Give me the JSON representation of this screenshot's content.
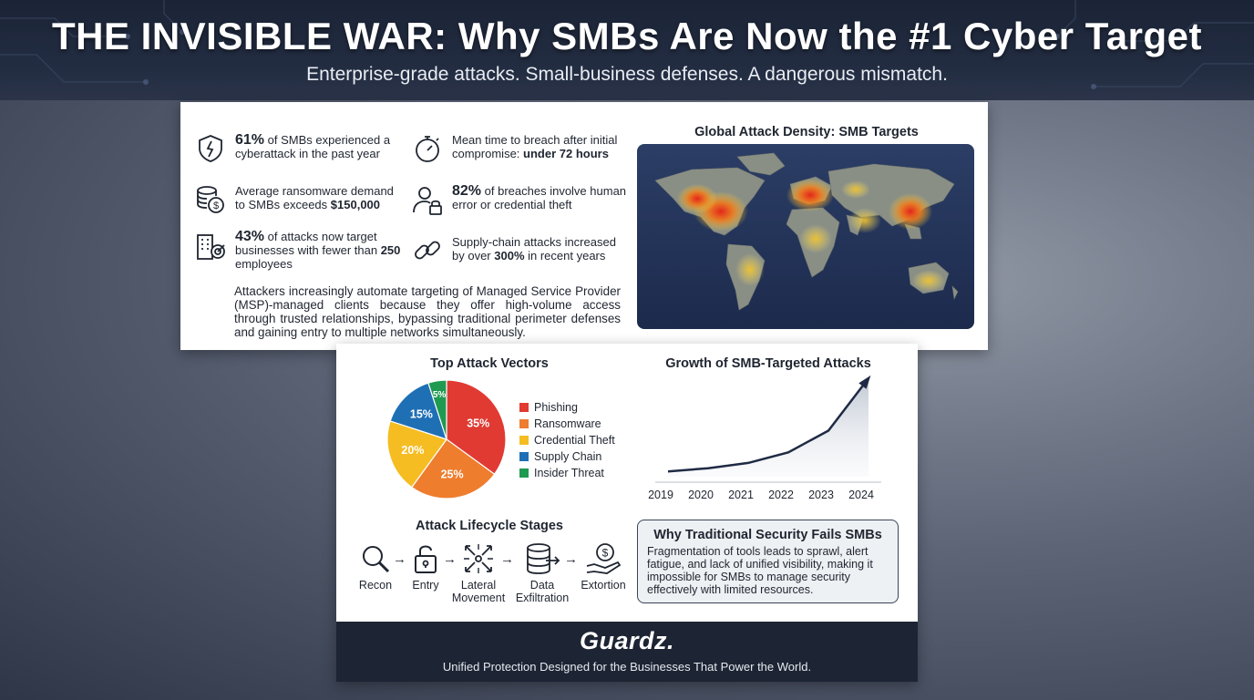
{
  "header": {
    "title": "THE INVISIBLE WAR: Why SMBs Are Now the #1 Cyber Target",
    "subtitle": "Enterprise-grade attacks. Small-business defenses. A dangerous mismatch."
  },
  "stats": [
    {
      "icon": "shield-crack-icon",
      "highlight": "61%",
      "text": "of SMBs experienced a cyberattack in the past year"
    },
    {
      "icon": "stopwatch-icon",
      "text": "Mean time to breach after initial compromise: ",
      "bold_tail": "under 72 hours"
    },
    {
      "icon": "coin-stack-icon",
      "text": "Average ransomware demand to SMBs exceeds ",
      "bold_tail": "$150,000"
    },
    {
      "icon": "user-lock-icon",
      "highlight": "82%",
      "text": "of breaches involve human error or credential theft"
    },
    {
      "icon": "building-target-icon",
      "highlight": "43%",
      "text": "of attacks now target businesses with fewer than ",
      "bold_tail": "250",
      "tail": " employees"
    },
    {
      "icon": "chain-link-icon",
      "text": "Supply-chain attacks increased by over ",
      "bold_tail": "300%",
      "tail": " in recent years"
    }
  ],
  "paragraph": "Attackers increasingly automate targeting of Managed Service Provider (MSP)-managed clients because they offer high-volume access through trusted relationships, bypassing traditional perimeter defenses and gaining entry to multiple networks simultaneously.",
  "map": {
    "title": "Global Attack Density: SMB Targets"
  },
  "vectors": {
    "title": "Top Attack Vectors",
    "chart_data": {
      "type": "pie",
      "categories": [
        "Phishing",
        "Ransomware",
        "Credential Theft",
        "Supply Chain",
        "Insider Threat"
      ],
      "values": [
        35,
        25,
        20,
        15,
        5
      ],
      "labels": [
        "35%",
        "25%",
        "20%",
        "15%",
        "5%"
      ],
      "colors": [
        "#e03a33",
        "#ef7d2e",
        "#f5bd22",
        "#1f6fb5",
        "#1f9a50"
      ],
      "title": "Top Attack Vectors",
      "legend": "right"
    }
  },
  "growth": {
    "title": "Growth of SMB-Targeted Attacks",
    "chart_data": {
      "type": "area",
      "x": [
        "2019",
        "2020",
        "2021",
        "2022",
        "2023",
        "2024"
      ],
      "y": [
        1,
        1.6,
        2.6,
        4.6,
        8.7,
        18.6
      ],
      "title": "Growth of SMB-Targeted Attacks",
      "xlabel": "",
      "ylabel": "",
      "grid": false
    }
  },
  "lifecycle": {
    "title": "Attack Lifecycle Stages",
    "stages": [
      {
        "icon": "magnifier-icon",
        "label": "Recon"
      },
      {
        "icon": "padlock-open-icon",
        "label": "Entry"
      },
      {
        "icon": "network-arrows-icon",
        "label": "Lateral Movement"
      },
      {
        "icon": "database-export-icon",
        "label": "Data Exfiltration"
      },
      {
        "icon": "hand-dollar-icon",
        "label": "Extortion"
      }
    ]
  },
  "why": {
    "title": "Why Traditional Security Fails SMBs",
    "body": "Fragmentation of tools leads to sprawl, alert fatigue, and lack of unified visibility, making it impossible for SMBs to manage security effectively with limited resources."
  },
  "footer": {
    "logo": "Guardz.",
    "tagline": "Unified Protection Designed for the Businesses That Power the World."
  }
}
